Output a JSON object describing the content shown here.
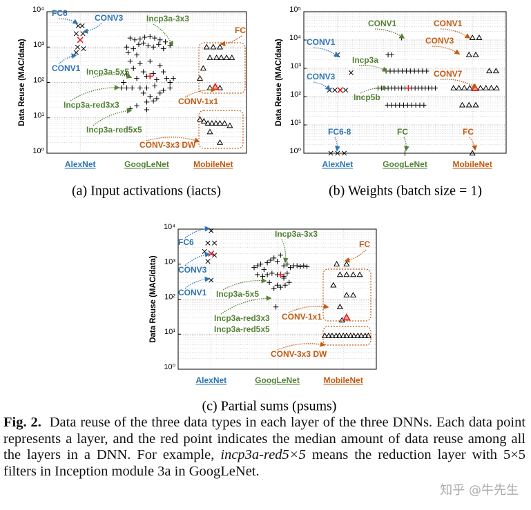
{
  "chart_data": [
    {
      "type": "scatter",
      "subtitle": "(a) Input activations (iacts)",
      "ylabel": "Data Reuse (MAC/data)",
      "log_y": true,
      "grid": true,
      "minor_grid": true,
      "ylim": [
        1,
        10000
      ],
      "yticks": [
        {
          "value": 1,
          "label": "10⁰"
        },
        {
          "value": 10,
          "label": "10¹"
        },
        {
          "value": 100,
          "label": "10²"
        },
        {
          "value": 1000,
          "label": "10³"
        },
        {
          "value": 10000,
          "label": "10⁴"
        }
      ],
      "xlim": [
        0.5,
        3.5
      ],
      "xticks": [
        {
          "value": 1,
          "label": "AlexNet"
        },
        {
          "value": 2,
          "label": "GoogLeNet"
        },
        {
          "value": 3,
          "label": "MobileNet"
        }
      ],
      "xtick_colors": [
        "#2e75b6",
        "#548235",
        "#c55a11"
      ],
      "series": [
        {
          "marker": "x",
          "color": "#000000",
          "x": [
            0.97,
            1.03,
            0.94,
            1.04,
            0.96,
            1.05,
            0.94
          ],
          "values": [
            4000,
            4000,
            2400,
            2400,
            1000,
            900,
            700
          ]
        },
        {
          "marker": "+",
          "color": "#000000",
          "x": [
            1.75,
            1.82,
            1.9,
            1.97,
            2.05,
            2.12,
            2.2,
            2.28,
            2.35,
            1.7,
            1.8,
            1.88,
            1.95,
            2.02,
            2.1,
            2.18,
            2.25,
            1.72,
            1.85,
            1.75,
            1.9,
            2.05,
            2.2,
            1.8,
            1.95,
            2.1,
            2.25,
            1.7,
            1.85,
            2.0,
            2.15,
            2.3,
            2.4,
            1.65,
            2.35,
            1.62,
            1.7,
            1.78,
            1.9,
            2.0,
            2.12,
            2.25,
            2.35,
            1.95,
            2.05,
            2.15,
            2.1,
            2.0,
            1.85,
            1.75,
            2.0,
            2.2
          ],
          "values": [
            1800,
            1600,
            1700,
            1900,
            2000,
            1800,
            1600,
            1400,
            1100,
            1000,
            900,
            1200,
            1300,
            1100,
            1000,
            1200,
            900,
            700,
            600,
            400,
            350,
            400,
            300,
            250,
            200,
            180,
            200,
            170,
            130,
            150,
            120,
            130,
            130,
            100,
            100,
            70,
            70,
            70,
            70,
            70,
            80,
            60,
            70,
            50,
            40,
            35,
            30,
            28,
            22,
            18,
            17,
            50
          ]
        },
        {
          "marker": "triangle",
          "color": "#000000",
          "x": [
            2.9,
            3.0,
            3.1,
            2.95,
            3.05,
            3.12,
            3.2,
            3.28,
            2.8,
            2.85,
            2.95,
            3.1,
            2.8,
            2.86,
            2.92,
            2.98,
            3.04,
            3.1,
            3.17,
            3.25,
            2.95,
            3.1
          ],
          "values": [
            1000,
            1000,
            1000,
            500,
            500,
            500,
            500,
            500,
            130,
            250,
            70,
            70,
            9,
            8,
            7,
            7,
            7,
            7,
            7,
            6,
            4,
            2
          ]
        },
        {
          "marker": "x",
          "color": "#e02020",
          "x": [
            1.0
          ],
          "values": [
            1600
          ]
        },
        {
          "marker": "+",
          "color": "#e02020",
          "x": [
            2.05
          ],
          "values": [
            150
          ]
        },
        {
          "marker": "triangle",
          "color": "#e02020",
          "x": [
            3.03
          ],
          "values": [
            75
          ]
        }
      ],
      "annotations": [
        {
          "text": "FC6",
          "color": "#2e75b6"
        },
        {
          "text": "CONV3",
          "color": "#2e75b6"
        },
        {
          "text": "CONV1",
          "color": "#2e75b6"
        },
        {
          "text": "Incp3a-3x3",
          "color": "#548235"
        },
        {
          "text": "Incp3a-5x5",
          "color": "#548235"
        },
        {
          "text": "Incp3a-red3x3",
          "color": "#548235"
        },
        {
          "text": "Incp3a-red5x5",
          "color": "#548235"
        },
        {
          "text": "FC",
          "color": "#c55a11"
        },
        {
          "text": "CONV-1x1",
          "color": "#c55a11"
        },
        {
          "text": "CONV-3x3 DW",
          "color": "#c55a11"
        }
      ]
    },
    {
      "type": "scatter",
      "subtitle": "(b) Weights (batch size = 1)",
      "ylabel": "Data Reuse (MAC/data)",
      "log_y": true,
      "grid": true,
      "minor_grid": true,
      "ylim": [
        1,
        100000
      ],
      "yticks": [
        {
          "value": 1,
          "label": "10⁰"
        },
        {
          "value": 10,
          "label": "10¹"
        },
        {
          "value": 100,
          "label": "10²"
        },
        {
          "value": 1000,
          "label": "10³"
        },
        {
          "value": 10000,
          "label": "10⁴"
        },
        {
          "value": 100000,
          "label": "10⁵"
        }
      ],
      "xlim": [
        0.5,
        3.5
      ],
      "xticks": [
        {
          "value": 1,
          "label": "AlexNet"
        },
        {
          "value": 2,
          "label": "GoogLeNet"
        },
        {
          "value": 3,
          "label": "MobileNet"
        }
      ],
      "xtick_colors": [
        "#2e75b6",
        "#548235",
        "#c55a11"
      ],
      "series": [
        {
          "marker": "x",
          "color": "#000000",
          "x": [
            1.0,
            1.2,
            0.88,
            0.96,
            1.12,
            0.9,
            1.0,
            1.1
          ],
          "values": [
            3000,
            700,
            170,
            170,
            170,
            1,
            1,
            1
          ]
        },
        {
          "marker": "+",
          "color": "#000000",
          "x": [
            1.95,
            1.75,
            1.8,
            1.72,
            1.78,
            1.84,
            1.9,
            1.96,
            2.02,
            2.08,
            2.14,
            2.2,
            2.26,
            2.32,
            1.6,
            1.65,
            1.7,
            1.75,
            1.8,
            1.85,
            1.9,
            1.95,
            2.0,
            2.1,
            2.15,
            2.2,
            2.25,
            2.3,
            2.35,
            2.4,
            2.45,
            1.74,
            1.8,
            1.86,
            1.92,
            1.98,
            2.04,
            2.1,
            2.16,
            2.22,
            2.28,
            2.0
          ],
          "values": [
            12000,
            3000,
            3000,
            800,
            800,
            800,
            800,
            800,
            800,
            800,
            800,
            800,
            800,
            800,
            200,
            200,
            200,
            200,
            200,
            200,
            200,
            200,
            200,
            200,
            200,
            200,
            200,
            200,
            200,
            200,
            200,
            50,
            50,
            50,
            50,
            50,
            50,
            50,
            50,
            50,
            50,
            1
          ]
        },
        {
          "marker": "triangle",
          "color": "#000000",
          "x": [
            3.0,
            3.1,
            2.95,
            3.05,
            3.25,
            3.35,
            2.72,
            2.8,
            2.88,
            2.96,
            3.12,
            3.2,
            3.28,
            3.36,
            2.85,
            2.95,
            3.05,
            3.0
          ],
          "values": [
            12000,
            12000,
            3000,
            3000,
            800,
            800,
            200,
            200,
            200,
            200,
            200,
            200,
            200,
            200,
            50,
            50,
            50,
            1
          ]
        },
        {
          "marker": "x",
          "color": "#e02020",
          "x": [
            1.04
          ],
          "values": [
            170
          ]
        },
        {
          "marker": "+",
          "color": "#e02020",
          "x": [
            2.05
          ],
          "values": [
            200
          ]
        },
        {
          "marker": "triangle",
          "color": "#e02020",
          "x": [
            3.04
          ],
          "values": [
            200
          ]
        }
      ],
      "annotations": [
        {
          "text": "CONV1",
          "color": "#2e75b6"
        },
        {
          "text": "CONV3",
          "color": "#2e75b6"
        },
        {
          "text": "FC6-8",
          "color": "#2e75b6"
        },
        {
          "text": "CONV1",
          "color": "#548235"
        },
        {
          "text": "Incp3a",
          "color": "#548235"
        },
        {
          "text": "Incp5b",
          "color": "#548235"
        },
        {
          "text": "FC",
          "color": "#548235"
        },
        {
          "text": "CONV1",
          "color": "#c55a11"
        },
        {
          "text": "CONV3",
          "color": "#c55a11"
        },
        {
          "text": "CONV7",
          "color": "#c55a11"
        },
        {
          "text": "FC",
          "color": "#c55a11"
        }
      ]
    },
    {
      "type": "scatter",
      "subtitle": "(c) Partial sums (psums)",
      "ylabel": "Data Reuse (MAC/data)",
      "log_y": true,
      "grid": true,
      "minor_grid": true,
      "ylim": [
        1,
        10000
      ],
      "yticks": [
        {
          "value": 1,
          "label": "10⁰"
        },
        {
          "value": 10,
          "label": "10¹"
        },
        {
          "value": 100,
          "label": "10²"
        },
        {
          "value": 1000,
          "label": "10³"
        },
        {
          "value": 10000,
          "label": "10⁴"
        }
      ],
      "xlim": [
        0.5,
        3.5
      ],
      "xticks": [
        {
          "value": 1,
          "label": "AlexNet"
        },
        {
          "value": 2,
          "label": "GoogLeNet"
        },
        {
          "value": 3,
          "label": "MobileNet"
        }
      ],
      "xtick_colors": [
        "#2e75b6",
        "#548235",
        "#c55a11"
      ],
      "series": [
        {
          "marker": "x",
          "color": "#000000",
          "x": [
            1.0,
            0.95,
            1.05,
            0.9,
            1.05,
            0.95,
            1.0
          ],
          "values": [
            9000,
            4000,
            4000,
            2300,
            1800,
            1200,
            350
          ]
        },
        {
          "marker": "+",
          "color": "#000000",
          "x": [
            1.65,
            1.7,
            1.75,
            1.8,
            1.85,
            1.9,
            1.95,
            2.0,
            2.05,
            2.1,
            2.15,
            2.2,
            2.25,
            2.3,
            2.35,
            2.4,
            2.45,
            1.7,
            1.78,
            1.85,
            1.92,
            2.0,
            2.1,
            2.15,
            1.88,
            1.95,
            2.0,
            2.05,
            2.12,
            2.18,
            1.98,
            2.1
          ],
          "values": [
            800,
            900,
            1000,
            700,
            1100,
            1300,
            1500,
            1200,
            1800,
            900,
            1000,
            800,
            900,
            900,
            850,
            900,
            850,
            500,
            450,
            500,
            550,
            500,
            450,
            550,
            300,
            200,
            250,
            220,
            250,
            300,
            60,
            400
          ]
        },
        {
          "marker": "triangle",
          "color": "#000000",
          "x": [
            2.9,
            3.05,
            2.95,
            3.05,
            3.15,
            3.25,
            2.85,
            3.05,
            3.15,
            2.95,
            2.98,
            2.72,
            2.78,
            2.83,
            2.89,
            2.94,
            3.0,
            3.05,
            3.11,
            3.16,
            3.22,
            3.27,
            3.33,
            3.38
          ],
          "values": [
            1000,
            1000,
            500,
            500,
            500,
            500,
            250,
            130,
            130,
            60,
            25,
            9,
            9,
            9,
            9,
            9,
            9,
            9,
            9,
            9,
            9,
            9,
            9,
            9
          ]
        },
        {
          "marker": "x",
          "color": "#e02020",
          "x": [
            1.0
          ],
          "values": [
            2000
          ]
        },
        {
          "marker": "+",
          "color": "#e02020",
          "x": [
            2.05
          ],
          "values": [
            500
          ]
        },
        {
          "marker": "triangle",
          "color": "#e02020",
          "x": [
            3.05
          ],
          "values": [
            30
          ]
        }
      ],
      "annotations": [
        {
          "text": "FC6",
          "color": "#2e75b6"
        },
        {
          "text": "CONV3",
          "color": "#2e75b6"
        },
        {
          "text": "CONV1",
          "color": "#2e75b6"
        },
        {
          "text": "Incp3a-3x3",
          "color": "#548235"
        },
        {
          "text": "Incp3a-5x5",
          "color": "#548235"
        },
        {
          "text": "Incp3a-red3x3",
          "color": "#548235"
        },
        {
          "text": "Incp3a-red5x5",
          "color": "#548235"
        },
        {
          "text": "FC",
          "color": "#c55a11"
        },
        {
          "text": "CONV-1x1",
          "color": "#c55a11"
        },
        {
          "text": "CONV-3x3 DW",
          "color": "#c55a11"
        }
      ]
    }
  ],
  "caption": {
    "label": "Fig. 2.",
    "text_before": "Data reuse of the three data types in each layer of the three DNNs. Each data point represents a layer, and the red point indicates the median amount of data reuse among all the layers in a DNN. For example,",
    "italic": "incp3a-red5×5",
    "text_after": "means the reduction layer with 5×5 filters in Inception module 3a in GoogLeNet."
  },
  "watermark": "知乎 @牛先生"
}
